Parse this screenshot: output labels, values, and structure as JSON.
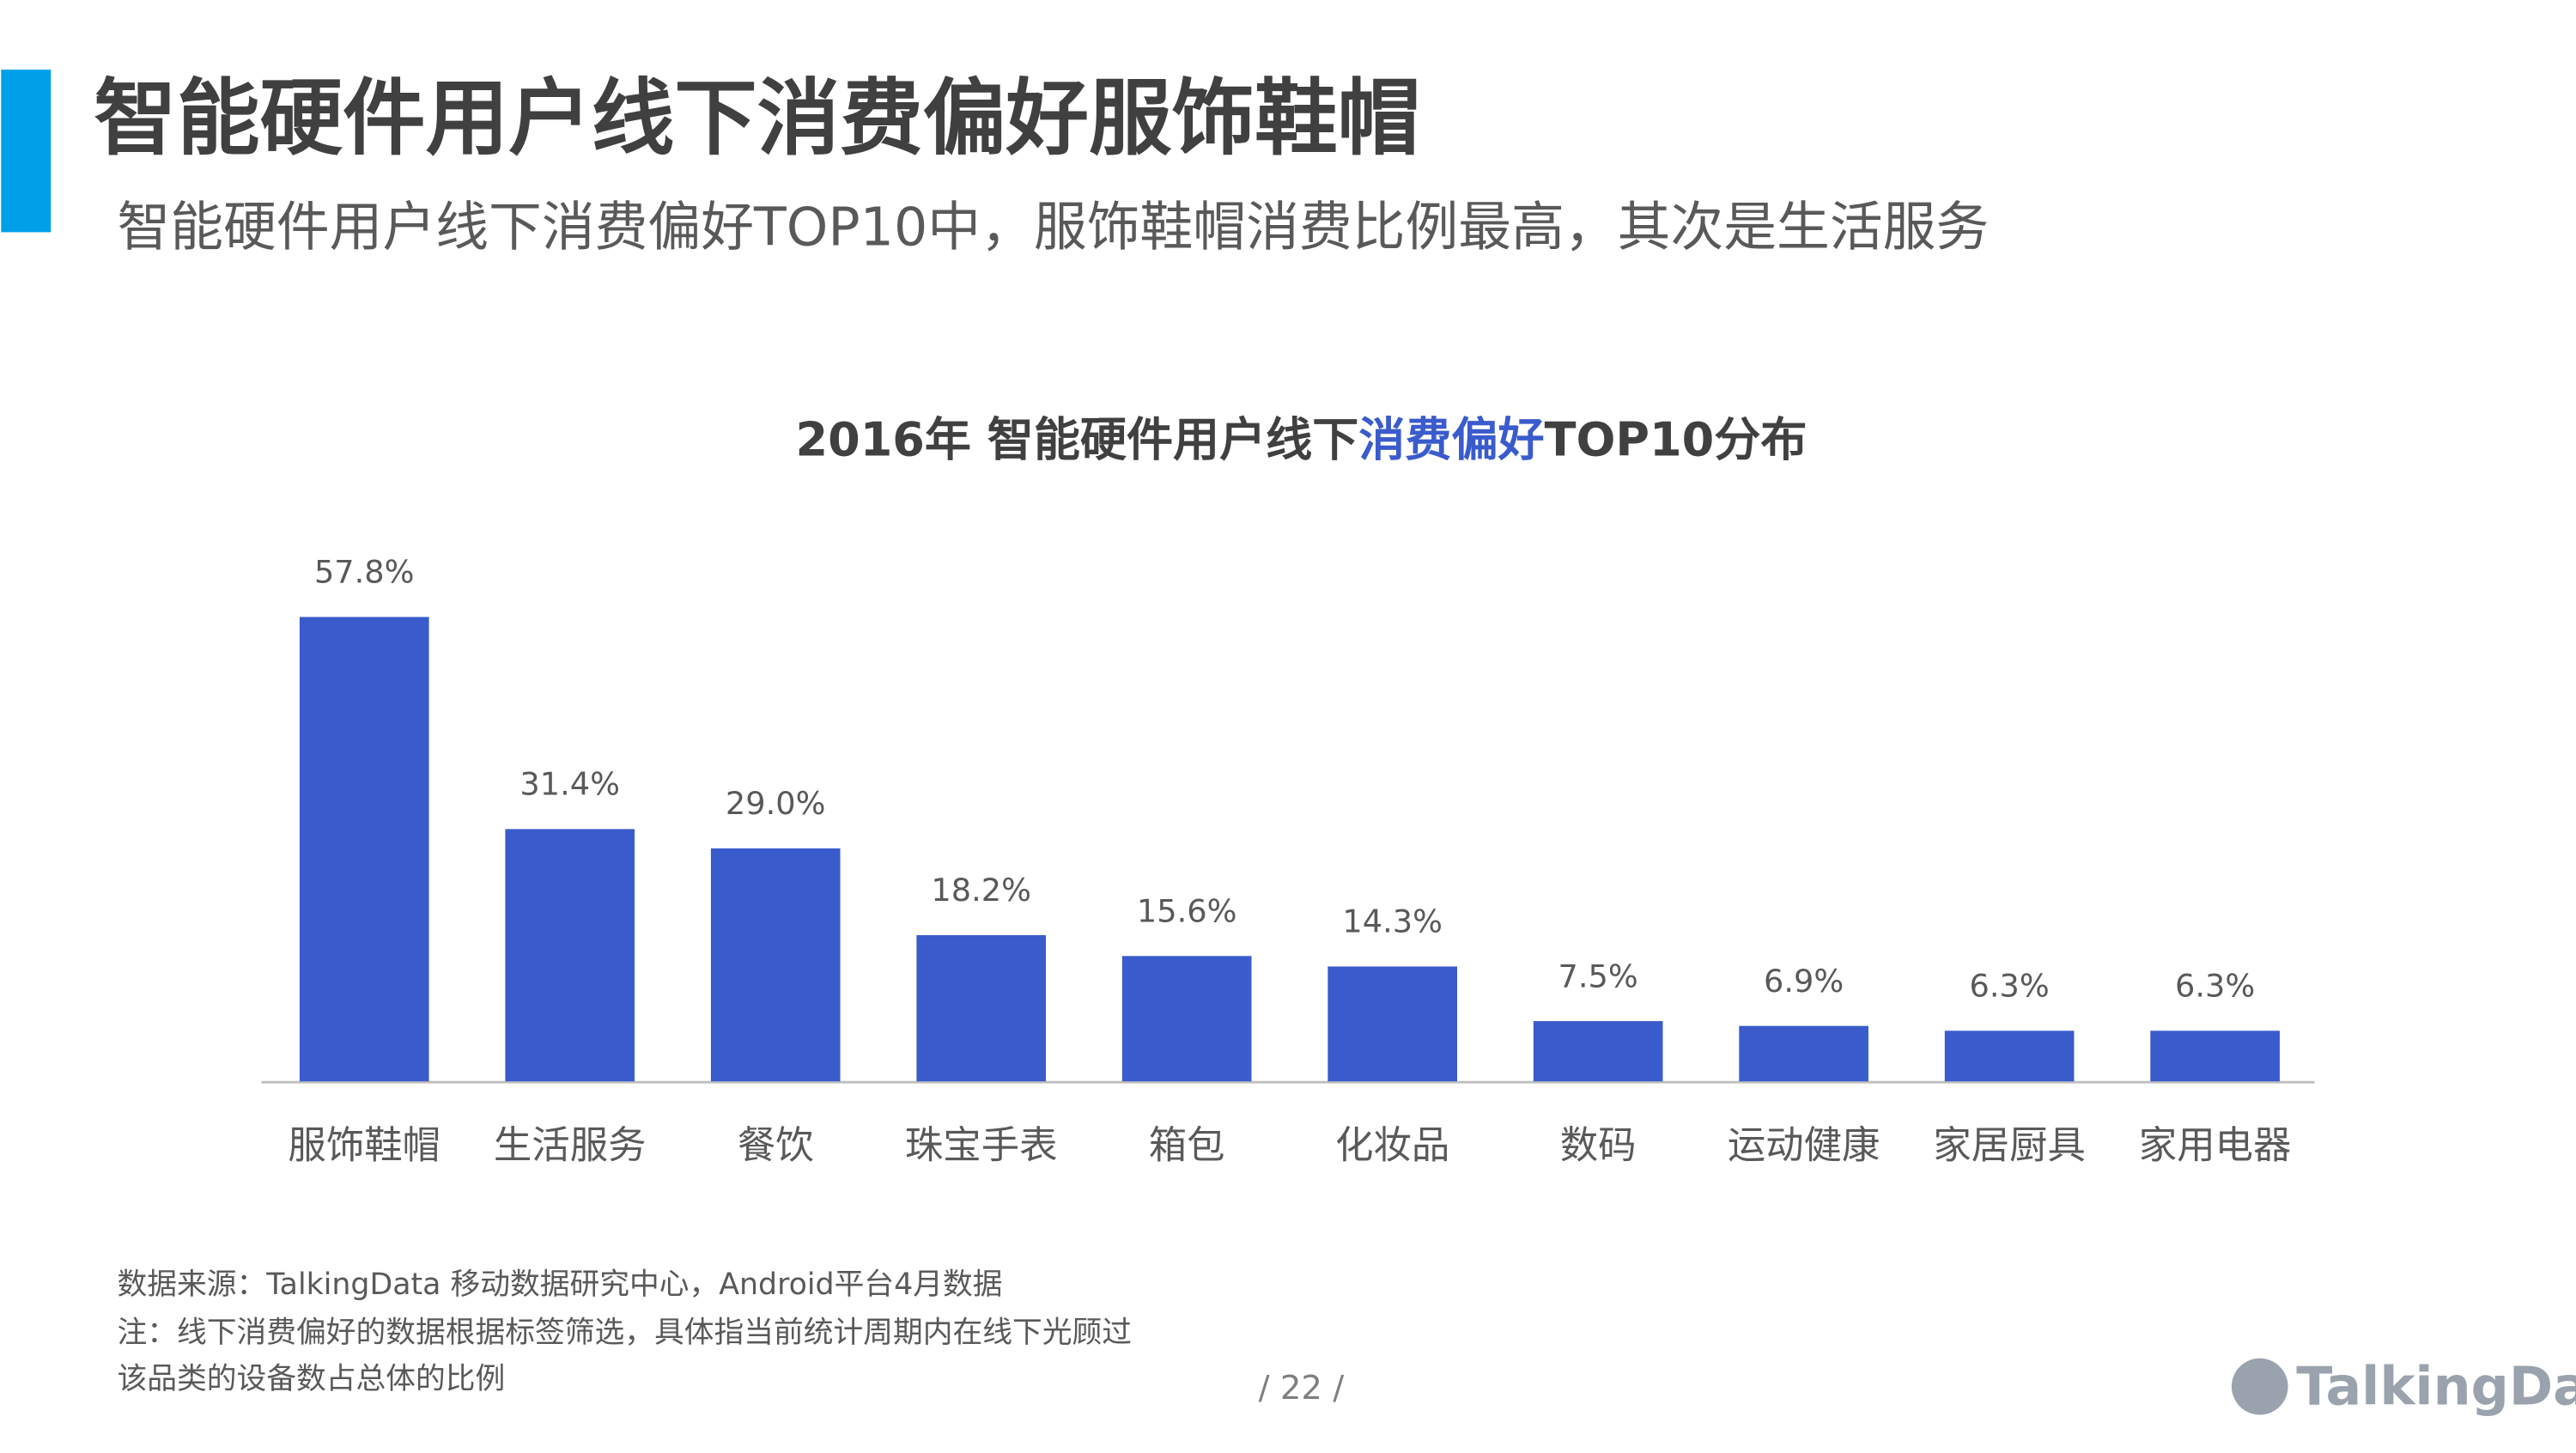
{
  "page": {
    "title": "智能硬件用户线下消费偏好服饰鞋帽",
    "subtitle": "智能硬件用户线下消费偏好TOP10中，服饰鞋帽消费比例最高，其次是生活服务",
    "notes": [
      "数据来源：TalkingData 移动数据研究中心，Android平台4月数据",
      "注：线下消费偏好的数据根据标签筛选，具体指当前统计周期内在线下光顾过",
      "该品类的设备数占总体的比例"
    ],
    "page_number": "/  22  /",
    "logo": "TalkingData"
  },
  "chart_data": {
    "type": "bar",
    "title": [
      "2016年 智能硬件用户线下",
      "消费偏好",
      "TOP10分布"
    ],
    "title_colors": [
      "#404040",
      "#3a5bcc",
      "#404040"
    ],
    "categories": [
      "服饰鞋帽",
      "生活服务",
      "餐饮",
      "珠宝手表",
      "箱包",
      "化妆品",
      "数码",
      "运动健康",
      "家居厨具",
      "家用电器"
    ],
    "values": [
      57.8,
      31.4,
      29.0,
      18.2,
      15.6,
      14.3,
      7.5,
      6.9,
      6.3,
      6.3
    ],
    "value_labels": [
      "57.8%",
      "31.4%",
      "29.0%",
      "18.2%",
      "15.6%",
      "14.3%",
      "7.5%",
      "6.9%",
      "6.3%",
      "6.3%"
    ],
    "color": "#3a5bcc"
  }
}
